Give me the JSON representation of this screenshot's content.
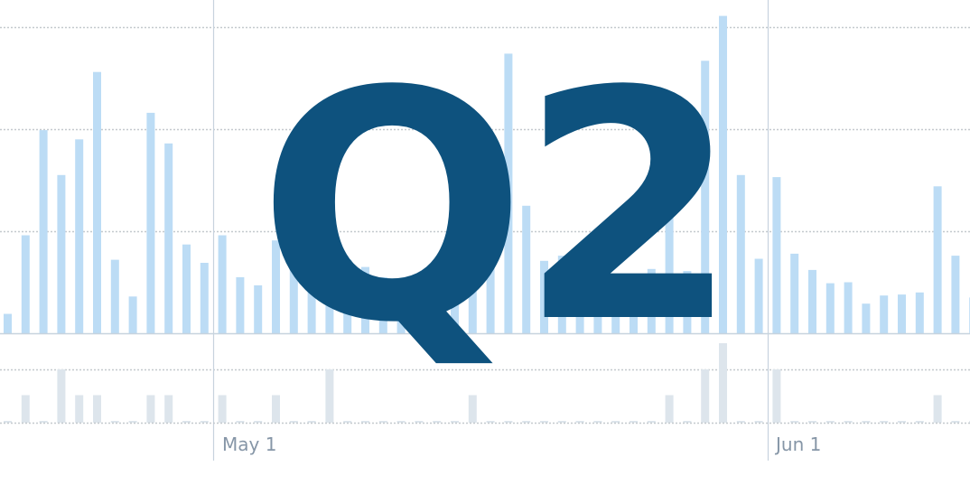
{
  "chart_data": {
    "type": "bar",
    "x_axis": {
      "ticks": [
        "May 1",
        "Jun 1"
      ]
    },
    "overlay_text": "Q2",
    "colors": {
      "main_bar": "#bcdcf5",
      "volume_bar": "#dde5ec",
      "gridline": "#c4c9ce",
      "month_line": "#c7d3de",
      "overlay_text": "#0e527e",
      "tick_label": "#8696a7"
    },
    "main_series": {
      "ylim": [
        0,
        3
      ],
      "values": [
        0.19,
        0.96,
        1.99,
        1.55,
        1.9,
        2.56,
        0.72,
        0.36,
        2.16,
        1.86,
        0.87,
        0.69,
        0.96,
        0.55,
        0.47,
        0.91,
        0.82,
        0.56,
        0.85,
        0.72,
        0.65,
        0.55,
        0.48,
        0.45,
        0.42,
        0.68,
        0.72,
        0.78,
        2.74,
        1.25,
        0.71,
        0.76,
        0.73,
        0.77,
        0.58,
        0.58,
        0.63,
        1.21,
        0.61,
        2.67,
        3.11,
        1.55,
        0.73,
        1.53,
        0.78,
        0.62,
        0.49,
        0.5,
        0.29,
        0.37,
        0.38,
        0.4,
        1.44,
        0.76,
        0.35
      ]
    },
    "volume_series": {
      "ylim": [
        0,
        2
      ],
      "values": [
        0,
        1,
        0,
        2,
        1,
        1,
        0,
        0,
        1,
        1,
        0,
        0,
        1,
        0,
        0,
        1,
        0,
        0,
        2,
        0,
        0,
        0,
        0,
        0,
        0,
        0,
        1,
        0,
        0,
        0,
        0,
        0,
        0,
        0,
        0,
        0,
        0,
        1,
        0,
        2,
        3,
        0,
        0,
        2,
        0,
        0,
        0,
        0,
        0,
        0,
        0,
        0,
        1,
        0,
        0
      ]
    }
  }
}
